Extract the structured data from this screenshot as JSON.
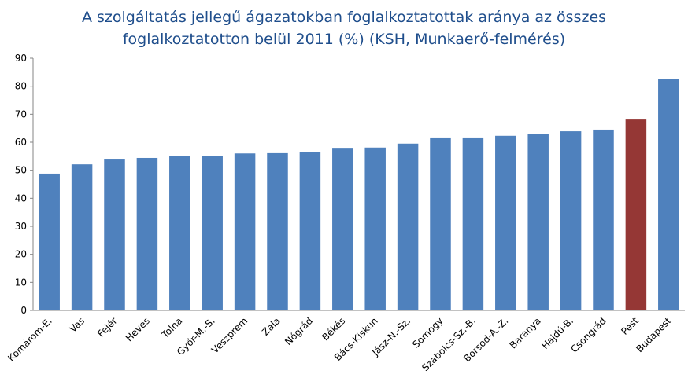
{
  "chart_data": {
    "type": "bar",
    "title": "A szolgáltatás jellegű ágazatokban foglalkoztatottak aránya az összes foglalkoztatotton belül 2011 (%) (KSH, Munkaerő-felmérés)",
    "categories": [
      "Komárom-E.",
      "Vas",
      "Fejér",
      "Heves",
      "Tolna",
      "Győr-M.-S.",
      "Veszprém",
      "Zala",
      "Nógrád",
      "Békés",
      "Bács-Kiskun",
      "Jász-N.-Sz.",
      "Somogy",
      "Szabolcs-Sz.-B.",
      "Borsod-A.-Z.",
      "Baranya",
      "Hajdú-B.",
      "Csongrád",
      "Pest",
      "Budapest"
    ],
    "values": [
      48.8,
      52.1,
      54.1,
      54.4,
      55.0,
      55.2,
      56.0,
      56.1,
      56.4,
      58.0,
      58.1,
      59.5,
      61.7,
      61.7,
      62.3,
      62.9,
      63.9,
      64.5,
      68.1,
      82.7
    ],
    "colors": [
      "#4f81bd",
      "#4f81bd",
      "#4f81bd",
      "#4f81bd",
      "#4f81bd",
      "#4f81bd",
      "#4f81bd",
      "#4f81bd",
      "#4f81bd",
      "#4f81bd",
      "#4f81bd",
      "#4f81bd",
      "#4f81bd",
      "#4f81bd",
      "#4f81bd",
      "#4f81bd",
      "#4f81bd",
      "#4f81bd",
      "#953735",
      "#4f81bd"
    ],
    "ylim": [
      0,
      90
    ],
    "yticks": [
      0,
      10,
      20,
      30,
      40,
      50,
      60,
      70,
      80,
      90
    ],
    "grid": false
  }
}
